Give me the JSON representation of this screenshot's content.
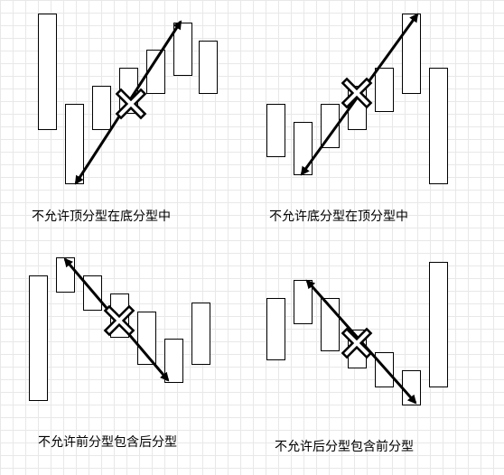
{
  "panels": [
    {
      "caption": "不允许顶分型在底分型中",
      "candles": [
        {
          "name": "bar-1"
        },
        {
          "name": "bar-2"
        },
        {
          "name": "bar-3"
        },
        {
          "name": "bar-4"
        },
        {
          "name": "bar-5"
        },
        {
          "name": "bar-6"
        },
        {
          "name": "bar-7"
        }
      ]
    },
    {
      "caption": "不允许底分型在顶分型中",
      "candles": [
        {
          "name": "bar-1"
        },
        {
          "name": "bar-2"
        },
        {
          "name": "bar-3"
        },
        {
          "name": "bar-4"
        },
        {
          "name": "bar-5"
        },
        {
          "name": "bar-6"
        },
        {
          "name": "bar-7"
        },
        {
          "name": "bar-8"
        }
      ]
    },
    {
      "caption": "不允许前分型包含后分型",
      "candles": [
        {
          "name": "bar-1"
        },
        {
          "name": "bar-2"
        },
        {
          "name": "bar-3"
        },
        {
          "name": "bar-4"
        },
        {
          "name": "bar-5"
        },
        {
          "name": "bar-6"
        },
        {
          "name": "bar-7"
        },
        {
          "name": "bar-8"
        }
      ]
    },
    {
      "caption": "不允许后分型包含前分型",
      "candles": [
        {
          "name": "bar-1"
        },
        {
          "name": "bar-2"
        },
        {
          "name": "bar-3"
        },
        {
          "name": "bar-4"
        },
        {
          "name": "bar-5"
        },
        {
          "name": "bar-6"
        },
        {
          "name": "bar-7"
        },
        {
          "name": "bar-8"
        }
      ]
    }
  ],
  "cross_mark_icon": "x-cross-icon",
  "arrow_icon": "double-headed-arrow-icon",
  "colors": {
    "stroke": "#000000",
    "fill": "#ffffff",
    "grid": "#e8e8e8"
  }
}
